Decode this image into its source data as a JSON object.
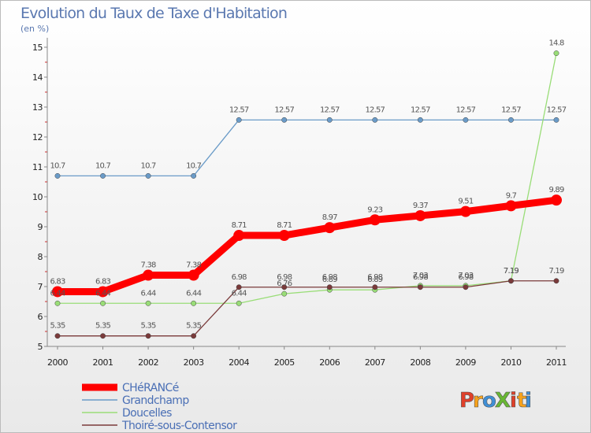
{
  "chart_data": {
    "type": "line",
    "title": "Evolution du Taux de Taxe d'Habitation",
    "subtitle": "(en %)",
    "xlabel": "",
    "ylabel": "",
    "x": [
      "2000",
      "2001",
      "2002",
      "2003",
      "2004",
      "2005",
      "2006",
      "2007",
      "2008",
      "2009",
      "2010",
      "2011"
    ],
    "ylim": [
      5,
      15
    ],
    "yticks": [
      "5",
      "6",
      "7",
      "8",
      "9",
      "10",
      "11",
      "12",
      "13",
      "14",
      "15"
    ],
    "grid": false,
    "legend_position": "bottom-left",
    "series": [
      {
        "name": "CHéRANCé",
        "color": "#ff0000",
        "values": [
          6.83,
          6.83,
          7.38,
          7.38,
          8.71,
          8.71,
          8.97,
          9.23,
          9.37,
          9.51,
          9.7,
          9.89
        ],
        "labels": [
          "6.83",
          "6.83",
          "7.38",
          "7.38",
          "8.71",
          "8.71",
          "8.97",
          "9.23",
          "9.37",
          "9.51",
          "9.7",
          "9.89"
        ]
      },
      {
        "name": "Grandchamp",
        "color": "#6a9bc8",
        "values": [
          10.7,
          10.7,
          10.7,
          10.7,
          12.57,
          12.57,
          12.57,
          12.57,
          12.57,
          12.57,
          12.57,
          12.57
        ],
        "labels": [
          "10.7",
          "10.7",
          "10.7",
          "10.7",
          "12.57",
          "12.57",
          "12.57",
          "12.57",
          "12.57",
          "12.57",
          "12.57",
          "12.57"
        ]
      },
      {
        "name": "Doucelles",
        "color": "#99dd77",
        "values": [
          6.44,
          6.44,
          6.44,
          6.44,
          6.44,
          6.76,
          6.89,
          6.89,
          7.03,
          7.03,
          7.19,
          14.8
        ],
        "labels": [
          "6.44",
          "6.44",
          "6.44",
          "6.44",
          "6.44",
          "6.76",
          "6.89",
          "6.89",
          "7.03",
          "7.03",
          "7.19",
          "14.8"
        ]
      },
      {
        "name": "Thoiré-sous-Contensor",
        "color": "#7a3a3a",
        "values": [
          5.35,
          5.35,
          5.35,
          5.35,
          6.98,
          6.98,
          6.98,
          6.98,
          6.98,
          6.98,
          7.19,
          7.19
        ],
        "labels": [
          "5.35",
          "5.35",
          "5.35",
          "5.35",
          "6.98",
          "6.98",
          "6.98",
          "6.98",
          "6.98",
          "6.98",
          "7.19",
          "7.19"
        ]
      }
    ]
  },
  "branding": {
    "logo_text": "ProXiti",
    "letters": [
      "P",
      "r",
      "o",
      "X",
      "i",
      "t",
      "i"
    ],
    "letter_colors": [
      "#e0402a",
      "#f7a21b",
      "#3f8fd6",
      "#69b734",
      "#e0402a",
      "#f7a21b",
      "#3f8fd6"
    ]
  }
}
